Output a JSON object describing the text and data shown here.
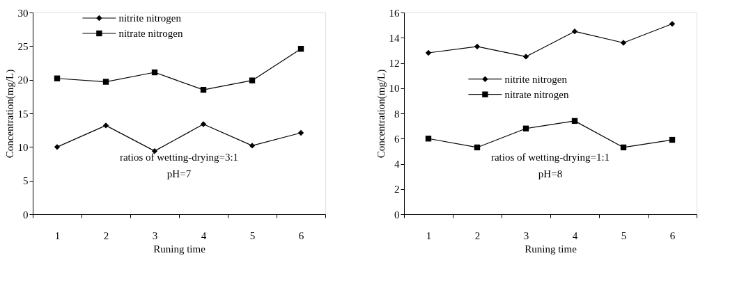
{
  "chart_data": [
    {
      "type": "line",
      "categories": [
        "1",
        "2",
        "3",
        "4",
        "5",
        "6"
      ],
      "xlabel": "Runing time",
      "ylabel": "Concentration(mg/L)",
      "ylim": [
        0,
        30
      ],
      "yticks": [
        0,
        5,
        10,
        15,
        20,
        25,
        30
      ],
      "grid": false,
      "legend": "top",
      "annotations": [
        "ratios of wetting-drying=3:1",
        "pH=7"
      ],
      "series": [
        {
          "name": "nitrite nitrogen",
          "color": "#000000",
          "marker": "diamond",
          "values": [
            10.0,
            13.2,
            9.4,
            13.4,
            10.2,
            12.1
          ]
        },
        {
          "name": "nitrate nitrogen",
          "color": "#000000",
          "marker": "square",
          "values": [
            20.2,
            19.7,
            21.1,
            18.5,
            19.9,
            24.6
          ]
        }
      ]
    },
    {
      "type": "line",
      "categories": [
        "1",
        "2",
        "3",
        "4",
        "5",
        "6"
      ],
      "xlabel": "Runing time",
      "ylabel": "Concentration(mg/L)",
      "ylim": [
        0,
        16
      ],
      "yticks": [
        0,
        2,
        4,
        6,
        8,
        10,
        12,
        14,
        16
      ],
      "grid": false,
      "legend": "left",
      "annotations": [
        "ratios of wetting-drying=1:1",
        "pH=8"
      ],
      "series": [
        {
          "name": "nitrite nitrogen",
          "color": "#000000",
          "marker": "diamond",
          "values": [
            12.8,
            13.3,
            12.5,
            14.5,
            13.6,
            15.1
          ]
        },
        {
          "name": "nitrate nitrogen",
          "color": "#000000",
          "marker": "square",
          "values": [
            6.0,
            5.3,
            6.8,
            7.4,
            5.3,
            5.9
          ]
        }
      ]
    }
  ]
}
